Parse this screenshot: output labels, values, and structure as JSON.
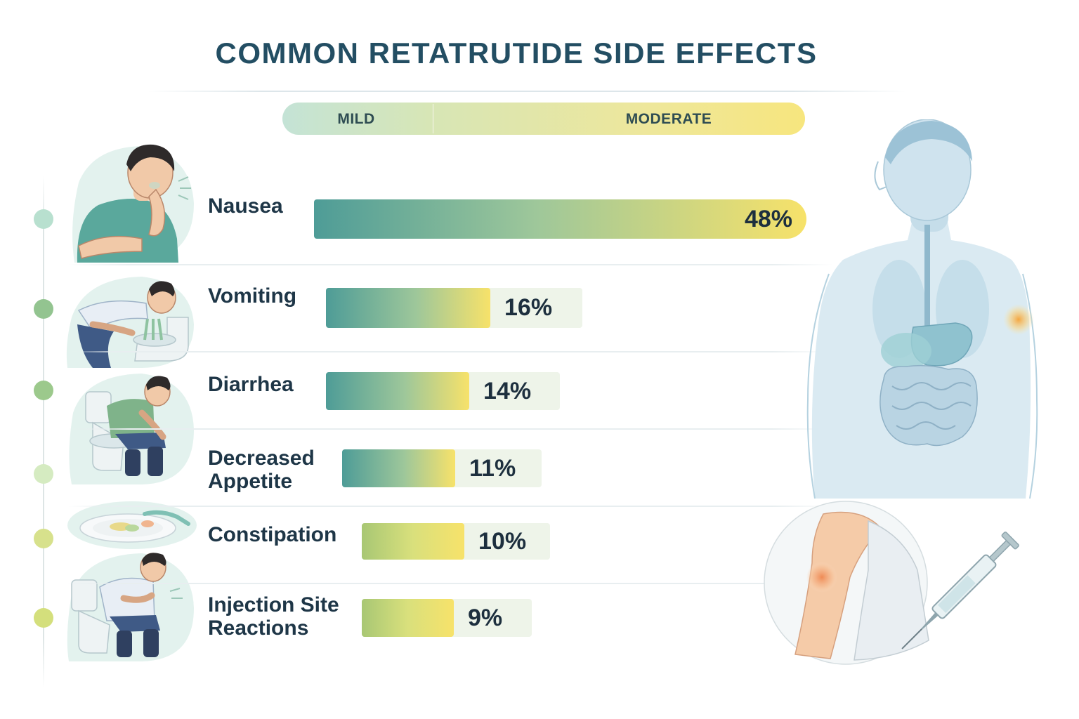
{
  "title": "COMMON RETATRUTIDE SIDE EFFECTS",
  "severity_scale": {
    "left_label": "MILD",
    "right_label": "MODERATE"
  },
  "colors": {
    "title": "#234e63",
    "bar_start": "#4e9c97",
    "bar_mid": "#9ec79a",
    "bar_end": "#f7e26a",
    "track": "#eef4e9",
    "timeline_dots": [
      "#b8e0cf",
      "#93c490",
      "#9cc98c",
      "#d5ebc1",
      "#d7e18c",
      "#d4df7c"
    ]
  },
  "icons": [
    "person-nausea-icon",
    "person-vomiting-icon",
    "person-toilet-icon",
    "dinner-plate-icon",
    "person-toilet-cramps-icon",
    "human-anatomy-icon",
    "injection-syringe-icon"
  ],
  "chart_data": {
    "type": "bar",
    "orientation": "horizontal",
    "title": "COMMON RETATRUTIDE SIDE EFFECTS",
    "unit": "%",
    "categories": [
      "Nausea",
      "Vomiting",
      "Diarrhea",
      "Decreased Appetite",
      "Constipation",
      "Injection Site Reactions"
    ],
    "values": [
      48,
      16,
      14,
      11,
      10,
      9
    ],
    "value_labels": [
      "48%",
      "16%",
      "14%",
      "11%",
      "10%",
      "9%"
    ],
    "category_lines": [
      [
        "Nausea"
      ],
      [
        "Vomiting"
      ],
      [
        "Diarrhea"
      ],
      [
        "Decreased",
        "Appetite"
      ],
      [
        "Constipation"
      ],
      [
        "Injection Site",
        "Reactions"
      ]
    ],
    "legend": "none",
    "grid": false
  }
}
